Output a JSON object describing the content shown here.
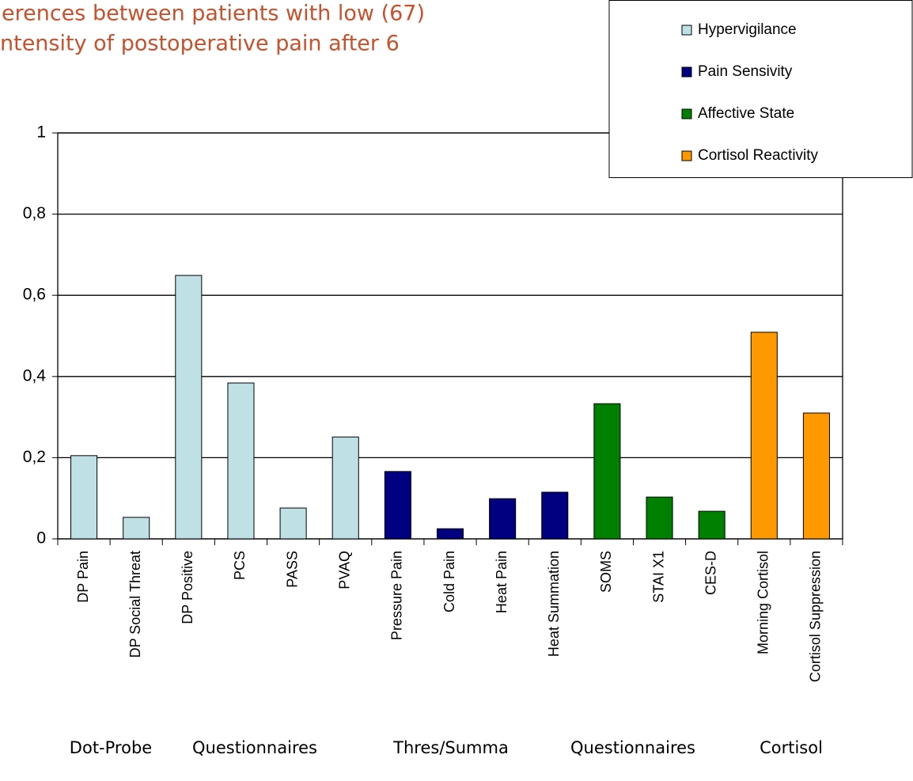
{
  "chart_data": {
    "type": "bar",
    "title": [
      "erences between patients with low (67)",
      "ntensity of postoperative pain after 6"
    ],
    "categories": [
      "DP Pain",
      "DP Social Threat",
      "DP Positive",
      "PCS",
      "PASS",
      "PVAQ",
      "Pressure Pain",
      "Cold Pain",
      "Heat Pain",
      "Heat Summation",
      "SOMS",
      "STAI X1",
      "CES-D",
      "Morning Cortisol",
      "Cortisol Suppression"
    ],
    "series": [
      {
        "name": "Hypervigilance",
        "color": "#bfe0e4",
        "values": [
          0.205,
          0.053,
          0.649,
          0.384,
          0.076,
          0.251,
          null,
          null,
          null,
          null,
          null,
          null,
          null,
          null,
          null
        ]
      },
      {
        "name": "Pain Sensivity",
        "color": "#000080",
        "values": [
          null,
          null,
          null,
          null,
          null,
          null,
          0.166,
          0.025,
          0.099,
          0.115,
          null,
          null,
          null,
          null,
          null
        ]
      },
      {
        "name": "Affective State",
        "color": "#008000",
        "values": [
          null,
          null,
          null,
          null,
          null,
          null,
          null,
          null,
          null,
          null,
          0.333,
          0.103,
          0.068,
          null,
          null
        ]
      },
      {
        "name": "Cortisol Reactivity",
        "color": "#ff9900",
        "values": [
          null,
          null,
          null,
          null,
          null,
          null,
          null,
          null,
          null,
          null,
          null,
          null,
          null,
          0.509,
          0.31
        ]
      }
    ],
    "group_labels": [
      "Dot-Probe",
      "Questionnaires",
      "Thres/Summa",
      "Questionnaires",
      "Cortisol"
    ],
    "ylim": [
      0,
      1
    ],
    "yticks": [
      0,
      {
        "value": 0.2,
        "label": "0,2"
      },
      {
        "value": 0.4,
        "label": "0,4"
      },
      {
        "value": 0.6,
        "label": "0,6"
      },
      {
        "value": 0.8,
        "label": "0,8"
      },
      1
    ],
    "grid": true
  }
}
